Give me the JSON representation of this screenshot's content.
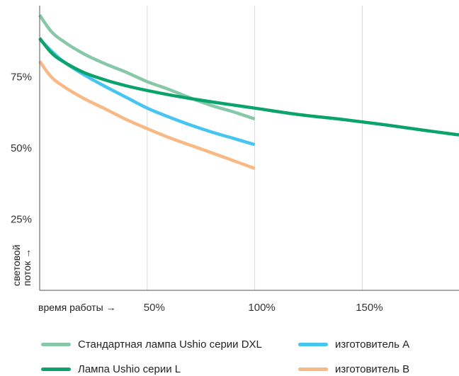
{
  "chart_data": {
    "type": "line",
    "xlabel": "время работы →",
    "ylabel_lines": [
      "световой",
      "поток →"
    ],
    "x_ticks": [
      {
        "value": 50,
        "label": "50%"
      },
      {
        "value": 100,
        "label": "100%"
      },
      {
        "value": 150,
        "label": "150%"
      }
    ],
    "y_ticks": [
      {
        "value": 25,
        "label": "25%"
      },
      {
        "value": 50,
        "label": "50%"
      },
      {
        "value": 75,
        "label": "75%"
      }
    ],
    "xlim": [
      0,
      195
    ],
    "ylim": [
      0,
      100
    ],
    "grid": "vertical",
    "legend_position": "bottom",
    "series": [
      {
        "name": "Стандартная лампа Ushio серии DXL",
        "color": "#86c8a8",
        "x": [
          0,
          5,
          10,
          20,
          30,
          40,
          50,
          60,
          70,
          80,
          90,
          100
        ],
        "y": [
          96.7,
          91.3,
          88.0,
          83.3,
          79.7,
          76.7,
          73.3,
          70.6,
          67.6,
          64.9,
          62.7,
          60.2
        ]
      },
      {
        "name": "Лампа Ushio серии L",
        "color": "#0aa36c",
        "x": [
          0,
          5,
          10,
          20,
          30,
          40,
          50,
          60,
          70,
          80,
          90,
          100,
          120,
          140,
          160,
          180,
          195
        ],
        "y": [
          88.6,
          83.8,
          80.8,
          76.7,
          74.0,
          71.9,
          70.2,
          68.7,
          67.4,
          66.2,
          65.1,
          64.0,
          61.8,
          60.1,
          58.2,
          56.1,
          54.6
        ]
      },
      {
        "name": "изготовитель А",
        "color": "#45c5ef",
        "x": [
          0,
          10,
          20,
          30,
          40,
          50,
          60,
          70,
          80,
          90,
          100
        ],
        "y": [
          88.2,
          81.0,
          76.0,
          71.8,
          67.9,
          64.0,
          60.9,
          58.1,
          55.6,
          53.4,
          51.2
        ]
      },
      {
        "name": "изготовитель В",
        "color": "#f8b985",
        "x": [
          0,
          5,
          10,
          20,
          30,
          40,
          50,
          60,
          70,
          80,
          90,
          100
        ],
        "y": [
          80.5,
          75.3,
          72.2,
          67.6,
          63.9,
          60.1,
          56.8,
          53.7,
          51.0,
          48.3,
          45.6,
          42.8
        ]
      }
    ]
  },
  "legend": {
    "items": [
      {
        "label": "Стандартная лампа Ushio серии DXL",
        "color": "#86c8a8"
      },
      {
        "label": "изготовитель А",
        "color": "#45c5ef"
      },
      {
        "label": "Лампа Ushio серии L",
        "color": "#0aa36c"
      },
      {
        "label": "изготовитель В",
        "color": "#f8b985"
      }
    ]
  },
  "colors": {
    "grid": "#d8d8d8",
    "axis": "#555555"
  }
}
